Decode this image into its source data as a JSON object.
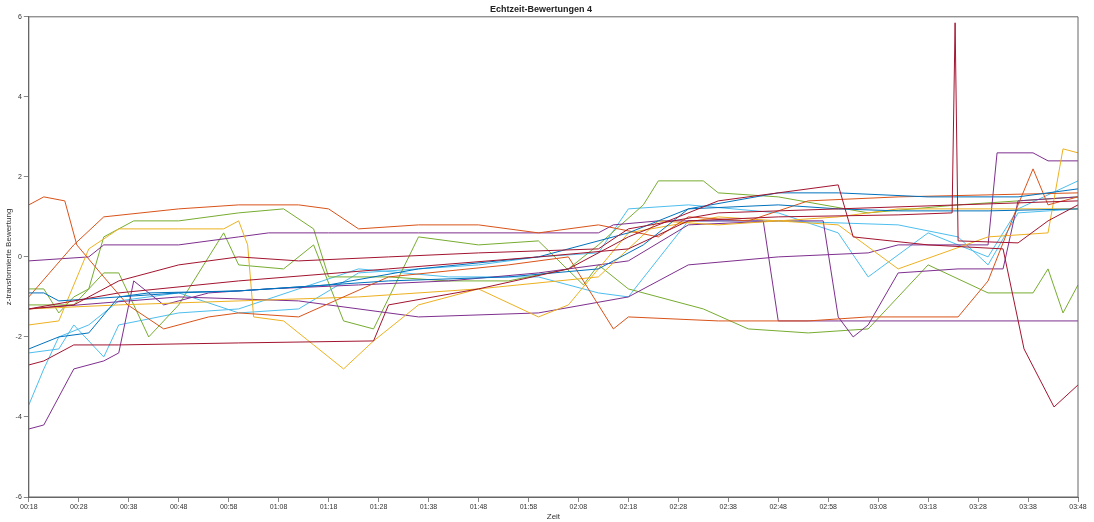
{
  "chart_data": {
    "type": "line",
    "title": "Echtzeit-Bewertungen 4",
    "xlabel": "Zeit",
    "ylabel": "z-transformierte Bewertung",
    "marker": "none",
    "line_style": "solid",
    "xlim": [
      0.3,
      3.8
    ],
    "xticks": [
      {
        "value": 0.3,
        "label": "00:18"
      },
      {
        "value": 0.4667,
        "label": "00:28"
      },
      {
        "value": 0.6333,
        "label": "00:38"
      },
      {
        "value": 0.8,
        "label": "00:48"
      },
      {
        "value": 0.9667,
        "label": "00:58"
      },
      {
        "value": 1.1333,
        "label": "01:08"
      },
      {
        "value": 1.3,
        "label": "01:18"
      },
      {
        "value": 1.4667,
        "label": "01:28"
      },
      {
        "value": 1.6333,
        "label": "01:38"
      },
      {
        "value": 1.8,
        "label": "01:48"
      },
      {
        "value": 1.9667,
        "label": "01:58"
      },
      {
        "value": 2.1333,
        "label": "02:08"
      },
      {
        "value": 2.3,
        "label": "02:18"
      },
      {
        "value": 2.4667,
        "label": "02:28"
      },
      {
        "value": 2.6333,
        "label": "02:38"
      },
      {
        "value": 2.8,
        "label": "02:48"
      },
      {
        "value": 2.9667,
        "label": "02:58"
      },
      {
        "value": 3.1333,
        "label": "03:08"
      },
      {
        "value": 3.3,
        "label": "03:18"
      },
      {
        "value": 3.4667,
        "label": "03:28"
      },
      {
        "value": 3.6333,
        "label": "03:38"
      },
      {
        "value": 3.8,
        "label": "03:48"
      }
    ],
    "ylim": [
      -6,
      6
    ],
    "yticks": [
      -6,
      -4,
      -2,
      0,
      2,
      4,
      6
    ],
    "series": [
      {
        "color": "#a2142f",
        "x": [
          0.3,
          0.6,
          1.0,
          1.5,
          2.0,
          2.3,
          2.5,
          2.8,
          3.2,
          3.38,
          3.39,
          3.4,
          3.6,
          3.7,
          3.8
        ],
        "values": [
          -1.3,
          -0.9,
          -0.6,
          -0.3,
          0,
          0.2,
          0.9,
          1.0,
          1.05,
          1.1,
          5.85,
          0.4,
          0.35,
          0.9,
          1.3
        ]
      },
      {
        "color": "#a2142f",
        "x": [
          0.3,
          0.35,
          0.45,
          0.6,
          1.0,
          1.45,
          1.5,
          1.8,
          2.1,
          2.3,
          2.6,
          3.0,
          3.05,
          3.3,
          3.55,
          3.62,
          3.72,
          3.8
        ],
        "values": [
          -2.7,
          -2.6,
          -2.2,
          -2.2,
          -2.15,
          -2.1,
          -1.2,
          -0.8,
          -0.3,
          0.5,
          1.4,
          1.8,
          0.5,
          0.3,
          0.2,
          -2.3,
          -3.75,
          -3.2
        ]
      },
      {
        "color": "#a2142f",
        "x": [
          0.3,
          0.45,
          0.6,
          0.8,
          1.0,
          1.2,
          1.5,
          1.8,
          2.2,
          2.3,
          2.6,
          3.0,
          3.4,
          3.8
        ],
        "values": [
          -1.3,
          -1.2,
          -0.6,
          -0.2,
          0,
          -0.1,
          0,
          0.1,
          0.2,
          0.7,
          1.1,
          1.2,
          1.3,
          1.4
        ]
      },
      {
        "color": "#0072bd",
        "x": [
          0.3,
          0.4,
          0.5,
          0.6,
          0.7,
          1.0,
          1.3,
          1.6,
          2.0,
          2.3,
          2.5,
          2.8,
          3.0,
          3.3,
          3.6,
          3.8
        ],
        "values": [
          -2.3,
          -2.0,
          -1.9,
          -1.0,
          -0.9,
          -0.85,
          -0.7,
          -0.3,
          0,
          0.6,
          1.2,
          1.6,
          1.6,
          1.5,
          1.5,
          1.7
        ]
      },
      {
        "color": "#0072bd",
        "x": [
          0.3,
          0.35,
          0.4,
          0.6,
          0.8,
          1.0,
          1.5,
          1.9,
          2.2,
          2.35,
          2.5,
          2.8,
          3.0,
          3.2,
          3.5,
          3.8
        ],
        "values": [
          -0.9,
          -0.9,
          -1.1,
          -1.0,
          -0.9,
          -0.85,
          -0.6,
          -0.5,
          -0.3,
          0.3,
          1.2,
          1.3,
          1.2,
          1.15,
          1.15,
          1.2
        ]
      },
      {
        "color": "#d95319",
        "x": [
          0.3,
          0.35,
          0.42,
          0.46,
          0.55,
          0.63,
          0.75,
          0.9,
          1.0,
          1.2,
          1.5,
          1.9,
          2.1,
          2.25,
          2.3,
          2.6,
          2.9,
          3.1,
          3.4,
          3.5,
          3.6,
          3.65,
          3.7,
          3.8
        ],
        "values": [
          1.3,
          1.5,
          1.4,
          0.3,
          -0.5,
          -1.2,
          -1.8,
          -1.5,
          -1.4,
          -1.5,
          -0.5,
          -0.2,
          0,
          -1.8,
          -1.5,
          -1.6,
          -1.6,
          -1.5,
          -1.5,
          -0.6,
          1.3,
          2.2,
          1.3,
          1.5
        ]
      },
      {
        "color": "#d95319",
        "x": [
          0.3,
          0.45,
          0.55,
          0.8,
          1.0,
          1.2,
          1.3,
          1.4,
          1.6,
          1.8,
          2.0,
          2.2,
          2.4,
          2.5,
          2.7,
          2.9,
          3.2,
          3.8
        ],
        "values": [
          -1.0,
          0.3,
          1.0,
          1.2,
          1.3,
          1.3,
          1.2,
          0.7,
          0.8,
          0.8,
          0.6,
          0.8,
          0.5,
          1.0,
          0.9,
          1.4,
          1.5,
          1.6
        ]
      },
      {
        "color": "#edb120",
        "x": [
          0.3,
          0.4,
          0.5,
          0.6,
          0.8,
          0.95,
          1.0,
          1.03,
          1.05,
          1.15,
          1.25,
          1.35,
          1.45,
          1.6,
          1.8,
          2.0,
          2.1,
          2.3,
          2.6,
          3.0,
          3.2,
          3.5,
          3.7,
          3.75,
          3.8
        ],
        "values": [
          -1.7,
          -1.6,
          0.2,
          0.7,
          0.7,
          0.7,
          0.9,
          0.3,
          -1.5,
          -1.6,
          -2.2,
          -2.8,
          -2.1,
          -1.2,
          -0.8,
          -1.5,
          -1.2,
          0.6,
          1.0,
          0.8,
          -0.3,
          0.5,
          0.6,
          2.7,
          2.6
        ]
      },
      {
        "color": "#edb120",
        "x": [
          0.3,
          0.6,
          1.0,
          1.4,
          1.8,
          2.2,
          2.4,
          2.6,
          3.0,
          3.2,
          3.5,
          3.8
        ],
        "values": [
          -1.3,
          -1.2,
          -1.1,
          -1.0,
          -0.8,
          -0.5,
          0.9,
          0.8,
          1.0,
          1.2,
          1.2,
          1.2
        ]
      },
      {
        "color": "#7e2f8e",
        "x": [
          0.3,
          0.35,
          0.4,
          0.45,
          0.55,
          0.6,
          0.65,
          0.75,
          0.9,
          1.1,
          1.4,
          1.7,
          2.0,
          2.3,
          2.5,
          2.8,
          2.95,
          3.0,
          3.05,
          3.1,
          3.2,
          3.4,
          3.55,
          3.6,
          3.8
        ],
        "values": [
          -4.3,
          -4.2,
          -3.5,
          -2.8,
          -2.6,
          -2.4,
          -0.6,
          -1.2,
          -0.9,
          -0.8,
          -0.7,
          -0.6,
          -0.4,
          -0.1,
          0.8,
          0.9,
          0.9,
          -1.5,
          -2.0,
          -1.7,
          -0.4,
          -0.3,
          -0.3,
          1.4,
          1.5
        ]
      },
      {
        "color": "#7e2f8e",
        "x": [
          0.3,
          0.5,
          0.55,
          0.8,
          1.0,
          1.1,
          1.3,
          1.6,
          2.0,
          2.2,
          2.25,
          2.4,
          2.75,
          2.8,
          3.0,
          3.5,
          3.8
        ],
        "values": [
          -0.1,
          0,
          0.3,
          0.3,
          0.5,
          0.6,
          0.6,
          0.6,
          0.6,
          0.6,
          0.8,
          0.9,
          0.9,
          -1.6,
          -1.6,
          -1.6,
          -1.6
        ]
      },
      {
        "color": "#7e2f8e",
        "x": [
          0.3,
          0.8,
          1.2,
          1.6,
          2.0,
          2.3,
          2.5,
          2.8,
          3.1,
          3.2,
          3.5,
          3.53,
          3.65,
          3.7,
          3.8
        ],
        "values": [
          -1.3,
          -1.0,
          -1.1,
          -1.5,
          -1.4,
          -1.0,
          -0.2,
          0,
          0.1,
          0.3,
          0.3,
          2.6,
          2.6,
          2.4,
          2.4
        ]
      },
      {
        "color": "#77ac30",
        "x": [
          0.3,
          0.35,
          0.4,
          0.45,
          0.5,
          0.55,
          0.65,
          0.8,
          1.0,
          1.15,
          1.25,
          1.3,
          1.5,
          1.7,
          1.9,
          2.1,
          2.2,
          2.35,
          2.4,
          2.55,
          2.6,
          2.8,
          3.1,
          3.4,
          3.8
        ],
        "values": [
          -0.8,
          -0.8,
          -1.4,
          -1.0,
          -0.8,
          0.5,
          0.9,
          0.9,
          1.1,
          1.2,
          0.7,
          -0.5,
          -0.5,
          -0.6,
          -0.6,
          -0.3,
          0.3,
          1.3,
          1.9,
          1.9,
          1.6,
          1.5,
          1.1,
          1.3,
          1.5
        ]
      },
      {
        "color": "#77ac30",
        "x": [
          0.3,
          0.45,
          0.55,
          0.6,
          0.7,
          0.8,
          0.95,
          1.0,
          1.15,
          1.25,
          1.35,
          1.45,
          1.6,
          1.8,
          2.0,
          2.15,
          2.2,
          2.3,
          2.55,
          2.7,
          2.9,
          3.1,
          3.3,
          3.5,
          3.65,
          3.7,
          3.75,
          3.8
        ],
        "values": [
          -1.2,
          -1.2,
          -0.4,
          -0.4,
          -2.0,
          -1.2,
          0.6,
          -0.2,
          -0.3,
          0.3,
          -1.6,
          -1.8,
          0.5,
          0.3,
          0.4,
          -0.7,
          -0.2,
          -0.8,
          -1.3,
          -1.8,
          -1.9,
          -1.8,
          -0.2,
          -0.9,
          -0.9,
          -0.3,
          -1.4,
          -0.7
        ]
      },
      {
        "color": "#4dbeee",
        "x": [
          0.3,
          0.35,
          0.4,
          0.5,
          0.6,
          0.8,
          1.0,
          1.2,
          1.4,
          1.6,
          1.8,
          2.0,
          2.2,
          2.3,
          2.5,
          2.8,
          3.0,
          3.1,
          3.3,
          3.5,
          3.6,
          3.8
        ],
        "values": [
          -3.7,
          -2.8,
          -2.0,
          -1.7,
          -1.1,
          -0.9,
          -1.4,
          -1.3,
          -0.4,
          -0.3,
          -0.2,
          0,
          0.1,
          1.2,
          1.3,
          1.1,
          0.6,
          -0.5,
          0.6,
          0,
          1.2,
          1.9
        ]
      },
      {
        "color": "#4dbeee",
        "x": [
          0.3,
          0.4,
          0.45,
          0.55,
          0.6,
          0.8,
          1.0,
          1.2,
          1.4,
          1.7,
          2.0,
          2.2,
          2.3,
          2.5,
          2.8,
          3.2,
          3.4,
          3.5,
          3.6,
          3.8
        ],
        "values": [
          -2.4,
          -2.3,
          -1.7,
          -2.5,
          -1.7,
          -1.4,
          -1.3,
          -0.8,
          -0.3,
          -0.5,
          -0.5,
          -0.9,
          -1.0,
          0.9,
          0.9,
          0.8,
          0.5,
          -0.2,
          1.1,
          1.2
        ]
      }
    ]
  }
}
